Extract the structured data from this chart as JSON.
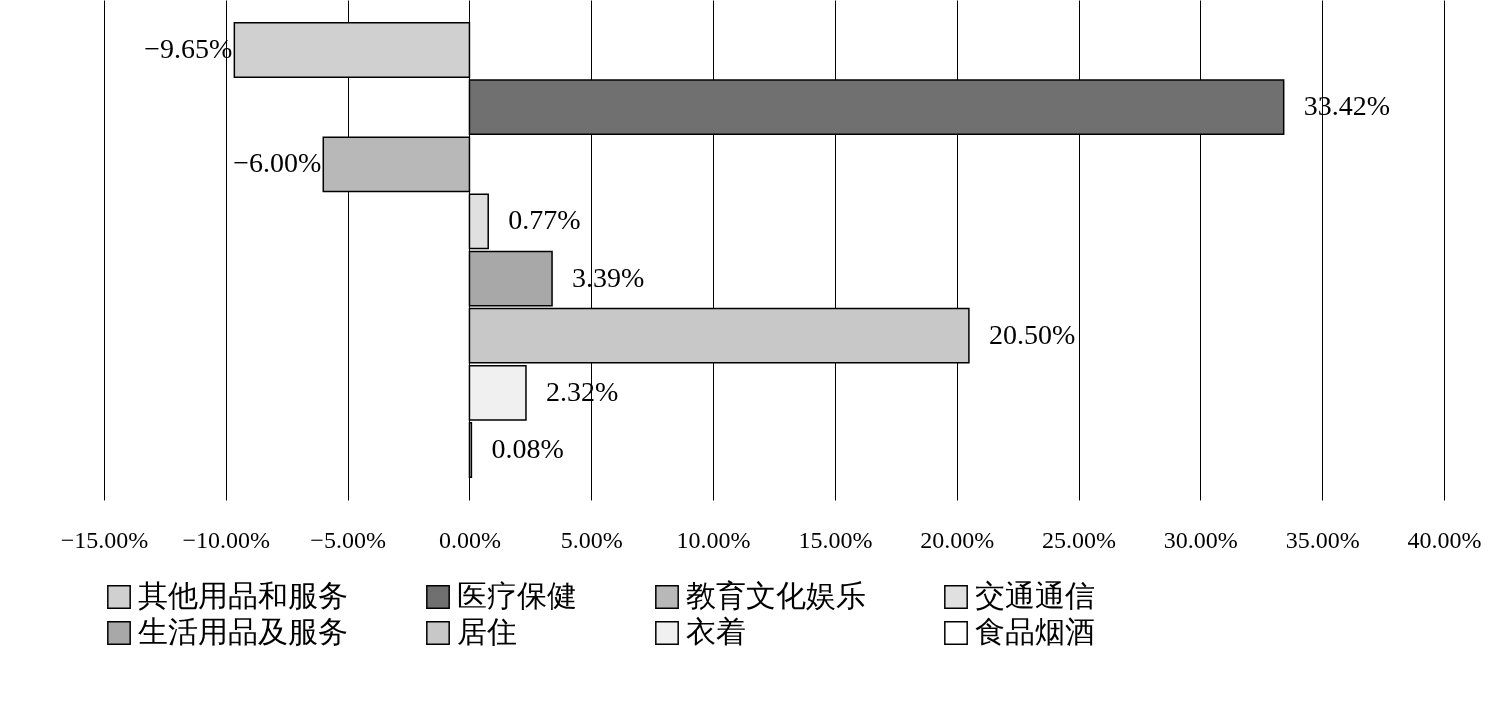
{
  "chart_data": {
    "type": "bar",
    "orientation": "horizontal",
    "categories": [
      null,
      null,
      null,
      null,
      null,
      null,
      null,
      null
    ],
    "xlim": [
      -15,
      40
    ],
    "xticks": [
      {
        "value": -15,
        "label": "−15.00%"
      },
      {
        "value": -10,
        "label": "−10.00%"
      },
      {
        "value": -5,
        "label": "−5.00%"
      },
      {
        "value": 0,
        "label": "0.00%"
      },
      {
        "value": 5,
        "label": "5.00%"
      },
      {
        "value": 10,
        "label": "10.00%"
      },
      {
        "value": 15,
        "label": "15.00%"
      },
      {
        "value": 20,
        "label": "20.00%"
      },
      {
        "value": 25,
        "label": "25.00%"
      },
      {
        "value": 30,
        "label": "30.00%"
      },
      {
        "value": 35,
        "label": "35.00%"
      },
      {
        "value": 40,
        "label": "40.00%"
      }
    ],
    "grid": "x",
    "tick_labels": "x",
    "legend": "bottom",
    "series": [
      {
        "name": "其他用品和服务",
        "color": "#d0d0d0",
        "values": [
          -9.65,
          null,
          null,
          null,
          null,
          null,
          null,
          null
        ],
        "value_labels": [
          "−9.65%",
          null,
          null,
          null,
          null,
          null,
          null,
          null
        ]
      },
      {
        "name": "医疗保健",
        "color": "#707070",
        "values": [
          null,
          33.42,
          null,
          null,
          null,
          null,
          null,
          null
        ],
        "value_labels": [
          null,
          "33.42%",
          null,
          null,
          null,
          null,
          null,
          null
        ]
      },
      {
        "name": "教育文化娱乐",
        "color": "#b8b8b8",
        "values": [
          null,
          null,
          -6.0,
          null,
          null,
          null,
          null,
          null
        ],
        "value_labels": [
          null,
          null,
          "−6.00%",
          null,
          null,
          null,
          null,
          null
        ]
      },
      {
        "name": "交通通信",
        "color": "#e0e0e0",
        "values": [
          null,
          null,
          null,
          0.77,
          null,
          null,
          null,
          null
        ],
        "value_labels": [
          null,
          null,
          null,
          "0.77%",
          null,
          null,
          null,
          null
        ]
      },
      {
        "name": "生活用品及服务",
        "color": "#a8a8a8",
        "values": [
          null,
          null,
          null,
          null,
          3.39,
          null,
          null,
          null
        ],
        "value_labels": [
          null,
          null,
          null,
          null,
          "3.39%",
          null,
          null,
          null
        ]
      },
      {
        "name": "居住",
        "color": "#c8c8c8",
        "values": [
          null,
          null,
          null,
          null,
          null,
          20.5,
          null,
          null
        ],
        "value_labels": [
          null,
          null,
          null,
          null,
          null,
          "20.50%",
          null,
          null
        ]
      },
      {
        "name": "衣着",
        "color": "#f0f0f0",
        "values": [
          null,
          null,
          null,
          null,
          null,
          null,
          2.32,
          null
        ],
        "value_labels": [
          null,
          null,
          null,
          null,
          null,
          null,
          "2.32%",
          null
        ]
      },
      {
        "name": "食品烟酒",
        "color": "#ffffff",
        "values": [
          null,
          null,
          null,
          null,
          null,
          null,
          null,
          0.08
        ],
        "value_labels": [
          null,
          null,
          null,
          null,
          null,
          null,
          null,
          "0.08%"
        ]
      }
    ]
  }
}
